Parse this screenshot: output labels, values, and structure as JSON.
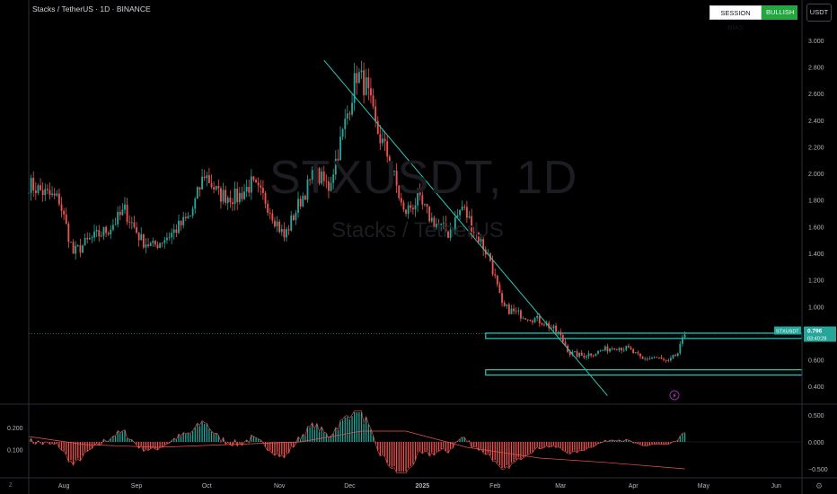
{
  "header": {
    "title": "Stacks / TetherUS · 1D · BINANCE",
    "session_bias_label": "SESSION BIAS",
    "session_bias_value": "BULLISH",
    "currency_button": "USDT"
  },
  "watermark": {
    "symbol": "STXUSDT, 1D",
    "name": "Stacks / TetherUS"
  },
  "corner_labels": {
    "bottom_left": "Z",
    "bottom_right": "⚙"
  },
  "colors": {
    "bull": "#26a69a",
    "bear": "#ef5350",
    "trendline": "#2ec4b6",
    "zone": "#2ec4b6",
    "osc_fast": "#ef5350",
    "osc_slow": "#ef5350",
    "price_tag": "#26a69a",
    "background": "#000000"
  },
  "chart_data": {
    "type": "candlestick",
    "symbol": "STXUSDT",
    "timeframe": "1D",
    "x_range": [
      "2024-07-17",
      "2025-06-12"
    ],
    "y_range": [
      0.3,
      3.1
    ],
    "y_ticks": [
      "3.000",
      "2.800",
      "2.600",
      "2.400",
      "2.200",
      "2.000",
      "1.800",
      "1.600",
      "1.400",
      "1.200",
      "1.000",
      "0.800",
      "0.600",
      "0.400"
    ],
    "y_tick_values": [
      3.0,
      2.8,
      2.6,
      2.4,
      2.2,
      2.0,
      1.8,
      1.6,
      1.4,
      1.2,
      1.0,
      0.8,
      0.6,
      0.4
    ],
    "x_ticks": [
      "Aug",
      "Sep",
      "Oct",
      "Nov",
      "Dec",
      "2025",
      "Feb",
      "Mar",
      "Apr",
      "May",
      "Jun"
    ],
    "x_tick_dates": [
      "2024-08-01",
      "2024-09-01",
      "2024-10-01",
      "2024-11-01",
      "2024-12-01",
      "2025-01-01",
      "2025-02-01",
      "2025-03-01",
      "2025-04-01",
      "2025-05-01",
      "2025-06-01"
    ],
    "close_path": [
      [
        "2024-07-17",
        1.92
      ],
      [
        "2024-07-24",
        1.85
      ],
      [
        "2024-07-30",
        1.8
      ],
      [
        "2024-08-05",
        1.4
      ],
      [
        "2024-08-12",
        1.5
      ],
      [
        "2024-08-20",
        1.58
      ],
      [
        "2024-08-27",
        1.72
      ],
      [
        "2024-09-03",
        1.5
      ],
      [
        "2024-09-08",
        1.45
      ],
      [
        "2024-09-16",
        1.55
      ],
      [
        "2024-09-24",
        1.68
      ],
      [
        "2024-09-30",
        2.0
      ],
      [
        "2024-10-06",
        1.84
      ],
      [
        "2024-10-14",
        1.82
      ],
      [
        "2024-10-20",
        1.92
      ],
      [
        "2024-10-26",
        1.8
      ],
      [
        "2024-11-03",
        1.52
      ],
      [
        "2024-11-10",
        1.8
      ],
      [
        "2024-11-16",
        2.0
      ],
      [
        "2024-11-22",
        1.9
      ],
      [
        "2024-11-28",
        2.3
      ],
      [
        "2024-12-04",
        2.75
      ],
      [
        "2024-12-08",
        2.65
      ],
      [
        "2024-12-12",
        2.35
      ],
      [
        "2024-12-18",
        2.1
      ],
      [
        "2024-12-24",
        1.7
      ],
      [
        "2024-12-30",
        1.8
      ],
      [
        "2025-01-05",
        1.65
      ],
      [
        "2025-01-12",
        1.55
      ],
      [
        "2025-01-18",
        1.75
      ],
      [
        "2025-01-24",
        1.55
      ],
      [
        "2025-01-30",
        1.35
      ],
      [
        "2025-02-04",
        1.0
      ],
      [
        "2025-02-10",
        0.95
      ],
      [
        "2025-02-16",
        0.92
      ],
      [
        "2025-02-22",
        0.88
      ],
      [
        "2025-02-28",
        0.8
      ],
      [
        "2025-03-05",
        0.65
      ],
      [
        "2025-03-10",
        0.63
      ],
      [
        "2025-03-17",
        0.66
      ],
      [
        "2025-03-24",
        0.7
      ],
      [
        "2025-03-30",
        0.68
      ],
      [
        "2025-04-05",
        0.6
      ],
      [
        "2025-04-10",
        0.62
      ],
      [
        "2025-04-16",
        0.58
      ],
      [
        "2025-04-20",
        0.65
      ],
      [
        "2025-04-23",
        0.79
      ]
    ],
    "trendline": [
      [
        "2024-11-20",
        2.85
      ],
      [
        "2025-03-21",
        0.33
      ]
    ],
    "zones": [
      {
        "from": "2025-01-28",
        "to": "2025-06-12",
        "low": 0.76,
        "high": 0.8
      },
      {
        "from": "2025-01-28",
        "to": "2025-06-12",
        "low": 0.485,
        "high": 0.525
      }
    ],
    "current_price": 0.796,
    "price_tag": {
      "symbol": "STXUSDT",
      "price": "0.796",
      "countdown": "03:40:28"
    },
    "oscillator": {
      "y_range": [
        -0.6,
        0.6
      ],
      "right_ticks": [
        "0.500",
        "0.000",
        "−0.500"
      ],
      "right_tick_values": [
        0.5,
        0.0,
        -0.5
      ],
      "left_ticks": [
        "0.200",
        "0.100"
      ],
      "left_tick_values": [
        0.27,
        -0.14
      ],
      "histogram_source": "derived from close_path momentum",
      "slow_line": [
        [
          "2024-07-17",
          0.1
        ],
        [
          "2024-08-10",
          -0.05
        ],
        [
          "2024-09-10",
          -0.1
        ],
        [
          "2024-10-10",
          -0.05
        ],
        [
          "2024-11-10",
          0.0
        ],
        [
          "2024-12-06",
          0.2
        ],
        [
          "2024-12-25",
          0.2
        ],
        [
          "2025-01-20",
          -0.1
        ],
        [
          "2025-02-20",
          -0.3
        ],
        [
          "2025-03-20",
          -0.38
        ],
        [
          "2025-04-23",
          -0.5
        ]
      ]
    }
  }
}
